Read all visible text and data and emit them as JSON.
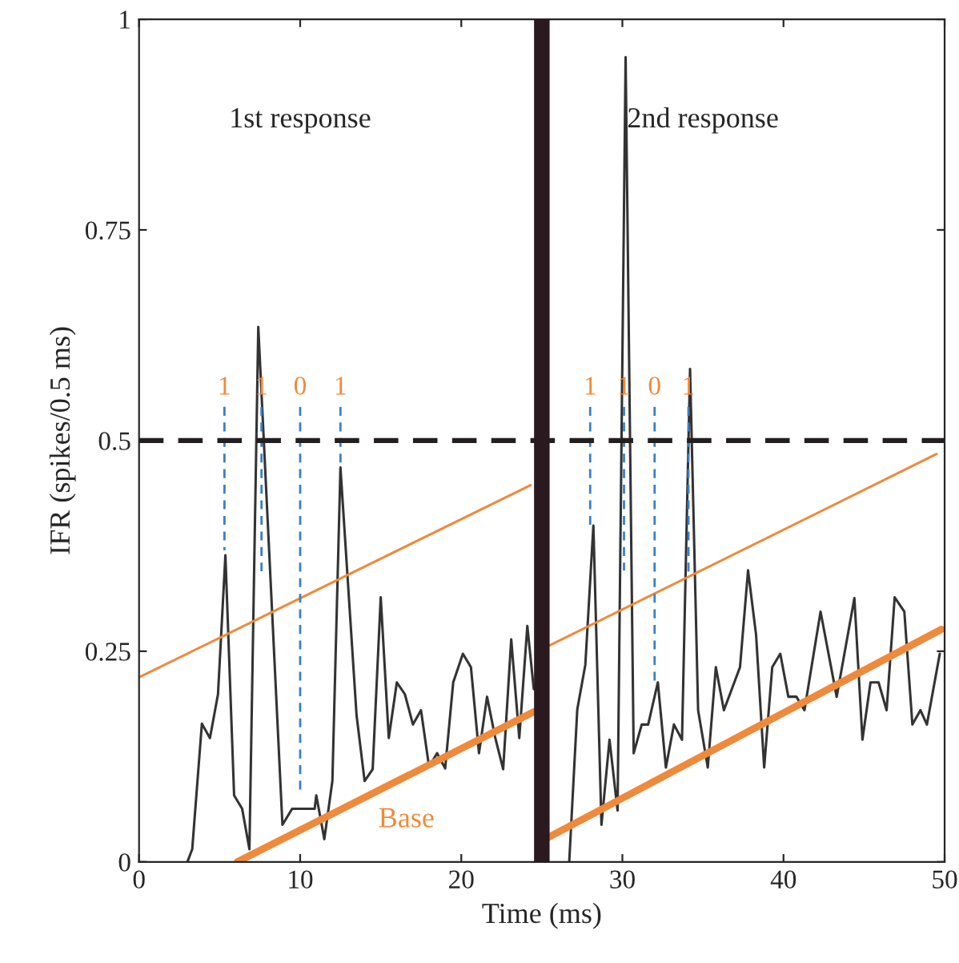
{
  "chart_data": {
    "type": "line",
    "xlabel": "Time (ms)",
    "ylabel": "IFR (spikes/0.5 ms)",
    "xlim": [
      0,
      50
    ],
    "xticks": [
      0,
      10,
      20,
      30,
      40,
      50
    ],
    "ylim": [
      0,
      1
    ],
    "yticks": [
      0,
      {
        "value": 0.25,
        "label": "0.25"
      },
      {
        "value": 0.5,
        "label": "0.5"
      },
      {
        "value": 0.75,
        "label": "0.75"
      },
      1
    ],
    "series": [
      {
        "color": "#333333",
        "line_style": "solid",
        "x": [
          3.0,
          3.3,
          3.9,
          4.4,
          4.9,
          5.36,
          5.9,
          6.4,
          6.85,
          7.4,
          8.9,
          9.5,
          10.9,
          11.0,
          11.5,
          12.0,
          12.5,
          13.5,
          14.0,
          14.5,
          15.0,
          15.5,
          16.0,
          16.5,
          17.0,
          17.5,
          18.0,
          18.5,
          19.0,
          19.5,
          20.1,
          20.6,
          21.1,
          21.6,
          22.1,
          22.6,
          23.1,
          23.6,
          24.1,
          24.5
        ],
        "values": [
          0,
          0.015,
          0.164,
          0.147,
          0.199,
          0.364,
          0.079,
          0.063,
          0.015,
          0.635,
          0.044,
          0.063,
          0.063,
          0.079,
          0.027,
          0.096,
          0.468,
          0.174,
          0.096,
          0.11,
          0.314,
          0.147,
          0.213,
          0.199,
          0.163,
          0.18,
          0.113,
          0.129,
          0.111,
          0.213,
          0.247,
          0.231,
          0.129,
          0.196,
          0.148,
          0.11,
          0.264,
          0.147,
          0.28,
          0.205
        ]
      },
      {
        "color": "#333333",
        "line_style": "solid",
        "x": [
          26.7,
          27.2,
          27.7,
          28.2,
          28.7,
          29.2,
          29.7,
          30.2,
          30.7,
          31.2,
          31.6,
          32.2,
          32.7,
          33.2,
          33.7,
          34.2,
          34.7,
          35.3,
          35.8,
          36.3,
          37.3,
          37.8,
          38.3,
          38.8,
          39.3,
          39.8,
          40.3,
          40.8,
          41.3,
          42.3,
          43.3,
          44.4,
          44.9,
          45.4,
          45.9,
          46.4,
          46.9,
          47.5,
          48.0,
          48.5,
          48.9,
          49.7
        ],
        "values": [
          0,
          0.181,
          0.234,
          0.399,
          0.044,
          0.145,
          0.061,
          0.955,
          0.129,
          0.163,
          0.163,
          0.213,
          0.112,
          0.163,
          0.145,
          0.585,
          0.18,
          0.112,
          0.231,
          0.18,
          0.231,
          0.346,
          0.269,
          0.112,
          0.231,
          0.247,
          0.196,
          0.196,
          0.18,
          0.297,
          0.196,
          0.313,
          0.145,
          0.213,
          0.213,
          0.18,
          0.314,
          0.297,
          0.163,
          0.18,
          0.163,
          0.247
        ]
      },
      {
        "color": "#ef8a3c",
        "line_style": "solid",
        "x": [
          0,
          24.3
        ],
        "values": [
          0.219,
          0.447
        ]
      },
      {
        "color": "#ef8a3c",
        "line_style": "solid",
        "x": [
          25.5,
          49.5
        ],
        "values": [
          0.257,
          0.484
        ]
      },
      {
        "color": "#ef8a3c",
        "line_style": "solid",
        "x": [
          6.1,
          24.5
        ],
        "values": [
          0,
          0.178
        ]
      },
      {
        "color": "#ef8a3c",
        "line_style": "solid",
        "x": [
          25.2,
          49.8
        ],
        "values": [
          0.027,
          0.276
        ]
      },
      {
        "color": "#3a7fc4",
        "line_style": "dashed",
        "x": [
          5.3,
          5.3
        ],
        "values": [
          0.54,
          0.37
        ]
      },
      {
        "color": "#3a7fc4",
        "line_style": "dashed",
        "x": [
          7.6,
          7.6
        ],
        "values": [
          0.54,
          0.345
        ]
      },
      {
        "color": "#3a7fc4",
        "line_style": "dashed",
        "x": [
          10.0,
          10.0
        ],
        "values": [
          0.54,
          0.079
        ]
      },
      {
        "color": "#3a7fc4",
        "line_style": "dashed",
        "x": [
          12.5,
          12.5
        ],
        "values": [
          0.54,
          0.468
        ]
      },
      {
        "color": "#3a7fc4",
        "line_style": "dashed",
        "x": [
          28.0,
          28.0
        ],
        "values": [
          0.54,
          0.4
        ]
      },
      {
        "color": "#3a7fc4",
        "line_style": "dashed",
        "x": [
          30.1,
          30.1
        ],
        "values": [
          0.54,
          0.346
        ]
      },
      {
        "color": "#3a7fc4",
        "line_style": "dashed",
        "x": [
          32.0,
          32.0
        ],
        "values": [
          0.54,
          0.213
        ]
      },
      {
        "color": "#3a7fc4",
        "line_style": "dashed",
        "x": [
          34.1,
          34.1
        ],
        "values": [
          0.54,
          0.338
        ]
      }
    ],
    "ref_lines": [
      {
        "axis": "y",
        "value": 0.5,
        "color": "#231f20",
        "line_style": "dashed"
      },
      {
        "axis": "x",
        "value": 25,
        "color": "#2a1a20",
        "line_style": "solid"
      }
    ],
    "annotations": [
      "1st response",
      "2nd response",
      {
        "text": "1",
        "x": 5.3,
        "y": 0.54
      },
      {
        "text": "1",
        "x": 7.6,
        "y": 0.54
      },
      {
        "text": "0",
        "x": 10.0,
        "y": 0.54
      },
      {
        "text": "1",
        "x": 12.5,
        "y": 0.54
      },
      {
        "text": "1",
        "x": 28.0,
        "y": 0.54
      },
      {
        "text": "1",
        "x": 30.1,
        "y": 0.54
      },
      {
        "text": "0",
        "x": 32.0,
        "y": 0.54
      },
      {
        "text": "1",
        "x": 34.1,
        "y": 0.54
      },
      {
        "text": "Base",
        "x": 16.6,
        "y": 0.102
      }
    ]
  }
}
